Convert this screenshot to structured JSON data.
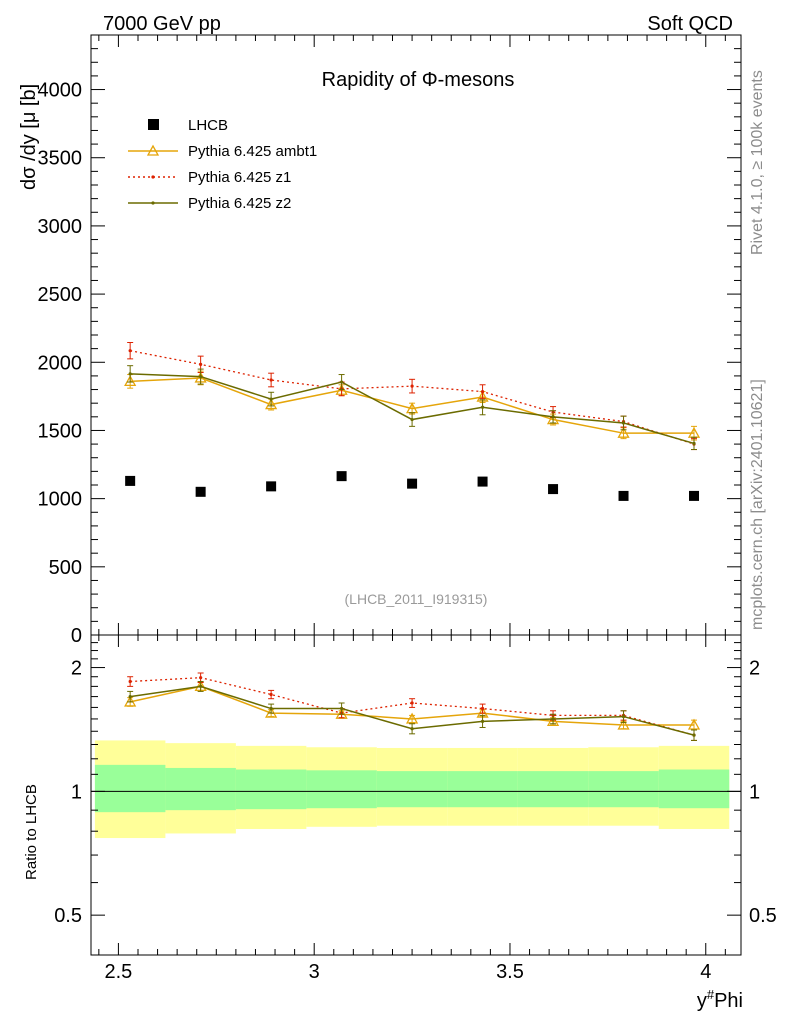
{
  "header": {
    "left": "7000 GeV pp",
    "right": "Soft QCD"
  },
  "side_labels": {
    "rivet": "Rivet 4.1.0, ≥ 100k events",
    "mcplots": "mcplots.cern.ch [arXiv:2401.10621]"
  },
  "chart_data": [
    {
      "type": "line",
      "title": "Rapidity of Φ-mesons",
      "watermark": "(LHCB_2011_I919315)",
      "xlabel": "y#Phi",
      "xlabel_parts": {
        "base": "y",
        "sup": "#",
        "rest": "Phi"
      },
      "ylabel": "dσ /dy [μ [b]",
      "xlim": [
        2.43,
        4.09
      ],
      "ylim": [
        0,
        4400
      ],
      "y_ticks": [
        0,
        500,
        1000,
        1500,
        2000,
        2500,
        3000,
        3500,
        4000
      ],
      "y_tick_labels": [
        "0",
        "500",
        "1000",
        "1500",
        "2000",
        "2500",
        "3000",
        "3500",
        "4000"
      ],
      "x_ticks": [
        2.5,
        3,
        3.5,
        4
      ],
      "x_tick_labels": [
        "2.5",
        "3",
        "3.5",
        "4"
      ],
      "x": [
        2.53,
        2.71,
        2.89,
        3.07,
        3.25,
        3.43,
        3.61,
        3.79,
        3.97
      ],
      "x_edges": [
        2.44,
        2.62,
        2.8,
        2.98,
        3.16,
        3.34,
        3.52,
        3.7,
        3.88,
        4.06
      ],
      "legend": [
        {
          "label": "LHCB",
          "style": "square",
          "color": "#000000"
        },
        {
          "label": "Pythia 6.425 ambt1",
          "style": "triangle",
          "color": "#e5a50a"
        },
        {
          "label": "Pythia 6.425 z1",
          "style": "dotted",
          "color": "#dd2200"
        },
        {
          "label": "Pythia 6.425 z2",
          "style": "solid",
          "color": "#6b6b00"
        }
      ],
      "series": [
        {
          "name": "LHCB",
          "values": [
            1130,
            1050,
            1090,
            1165,
            1110,
            1125,
            1070,
            1020,
            1020
          ]
        },
        {
          "name": "Pythia 6.425 ambt1",
          "values": [
            1860,
            1885,
            1690,
            1795,
            1660,
            1745,
            1580,
            1480,
            1480
          ],
          "errors": [
            50,
            50,
            40,
            40,
            40,
            40,
            40,
            40,
            50
          ]
        },
        {
          "name": "Pythia 6.425 z1",
          "values": [
            2085,
            1985,
            1870,
            1805,
            1825,
            1785,
            1635,
            1565,
            1400
          ],
          "errors": [
            60,
            60,
            50,
            50,
            50,
            50,
            40,
            40,
            40
          ]
        },
        {
          "name": "Pythia 6.425 z2",
          "values": [
            1915,
            1895,
            1730,
            1855,
            1580,
            1670,
            1600,
            1555,
            1405
          ],
          "errors": [
            60,
            55,
            50,
            55,
            50,
            55,
            45,
            50,
            45
          ]
        }
      ]
    },
    {
      "type": "line",
      "ylabel": "Ratio to LHCB",
      "yscale": "log",
      "ylim": [
        0.4,
        2.4
      ],
      "y_ticks": [
        0.5,
        1,
        2
      ],
      "y_tick_labels": [
        "0.5",
        "1",
        "2"
      ],
      "x": [
        2.53,
        2.71,
        2.89,
        3.07,
        3.25,
        3.43,
        3.61,
        3.79,
        3.97
      ],
      "band_inner": {
        "low": [
          0.89,
          0.9,
          0.905,
          0.91,
          0.915,
          0.915,
          0.915,
          0.915,
          0.91
        ],
        "high": [
          1.16,
          1.14,
          1.13,
          1.125,
          1.12,
          1.12,
          1.12,
          1.12,
          1.13
        ],
        "color": "#99ff99"
      },
      "band_outer": {
        "low": [
          0.77,
          0.79,
          0.81,
          0.82,
          0.825,
          0.825,
          0.825,
          0.825,
          0.81
        ],
        "high": [
          1.33,
          1.31,
          1.29,
          1.28,
          1.275,
          1.275,
          1.275,
          1.28,
          1.29
        ],
        "color": "#ffff99"
      },
      "series": [
        {
          "name": "Pythia 6.425 ambt1",
          "values": [
            1.65,
            1.8,
            1.55,
            1.54,
            1.5,
            1.55,
            1.48,
            1.45,
            1.45
          ],
          "errors": [
            0.04,
            0.04,
            0.03,
            0.03,
            0.03,
            0.03,
            0.03,
            0.03,
            0.04
          ]
        },
        {
          "name": "Pythia 6.425 z1",
          "values": [
            1.85,
            1.89,
            1.72,
            1.55,
            1.64,
            1.59,
            1.53,
            1.53,
            1.37
          ],
          "errors": [
            0.05,
            0.05,
            0.04,
            0.04,
            0.04,
            0.04,
            0.04,
            0.04,
            0.04
          ]
        },
        {
          "name": "Pythia 6.425 z2",
          "values": [
            1.7,
            1.8,
            1.59,
            1.59,
            1.42,
            1.48,
            1.5,
            1.52,
            1.37
          ],
          "errors": [
            0.05,
            0.05,
            0.04,
            0.05,
            0.04,
            0.05,
            0.04,
            0.05,
            0.04
          ]
        }
      ]
    }
  ]
}
